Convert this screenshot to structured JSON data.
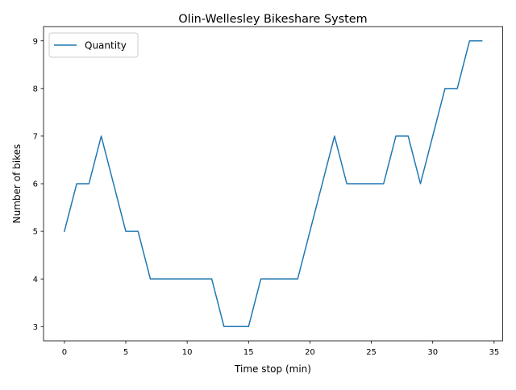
{
  "chart_data": {
    "type": "line",
    "title": "Olin-Wellesley Bikeshare System",
    "xlabel": "Time stop (min)",
    "ylabel": "Number of bikes",
    "xlim": [
      -1.7,
      35.7
    ],
    "ylim": [
      2.7,
      9.3
    ],
    "xticks": [
      0,
      5,
      10,
      15,
      20,
      25,
      30,
      35
    ],
    "yticks": [
      3,
      4,
      5,
      6,
      7,
      8,
      9
    ],
    "grid": false,
    "legend": {
      "placement": "top-left",
      "entries": [
        "Quantity"
      ]
    },
    "series": [
      {
        "name": "Quantity",
        "color": "#1f77b4",
        "x": [
          0,
          1,
          2,
          3,
          4,
          5,
          6,
          7,
          8,
          9,
          10,
          11,
          12,
          13,
          14,
          15,
          16,
          17,
          18,
          19,
          20,
          21,
          22,
          23,
          24,
          25,
          26,
          27,
          28,
          29,
          30,
          31,
          32,
          33,
          34
        ],
        "y": [
          5,
          6,
          6,
          7,
          6,
          5,
          5,
          4,
          4,
          4,
          4,
          4,
          4,
          3,
          3,
          3,
          4,
          4,
          4,
          4,
          5,
          6,
          7,
          6,
          6,
          6,
          6,
          7,
          7,
          6,
          7,
          8,
          8,
          9,
          9
        ]
      }
    ]
  }
}
